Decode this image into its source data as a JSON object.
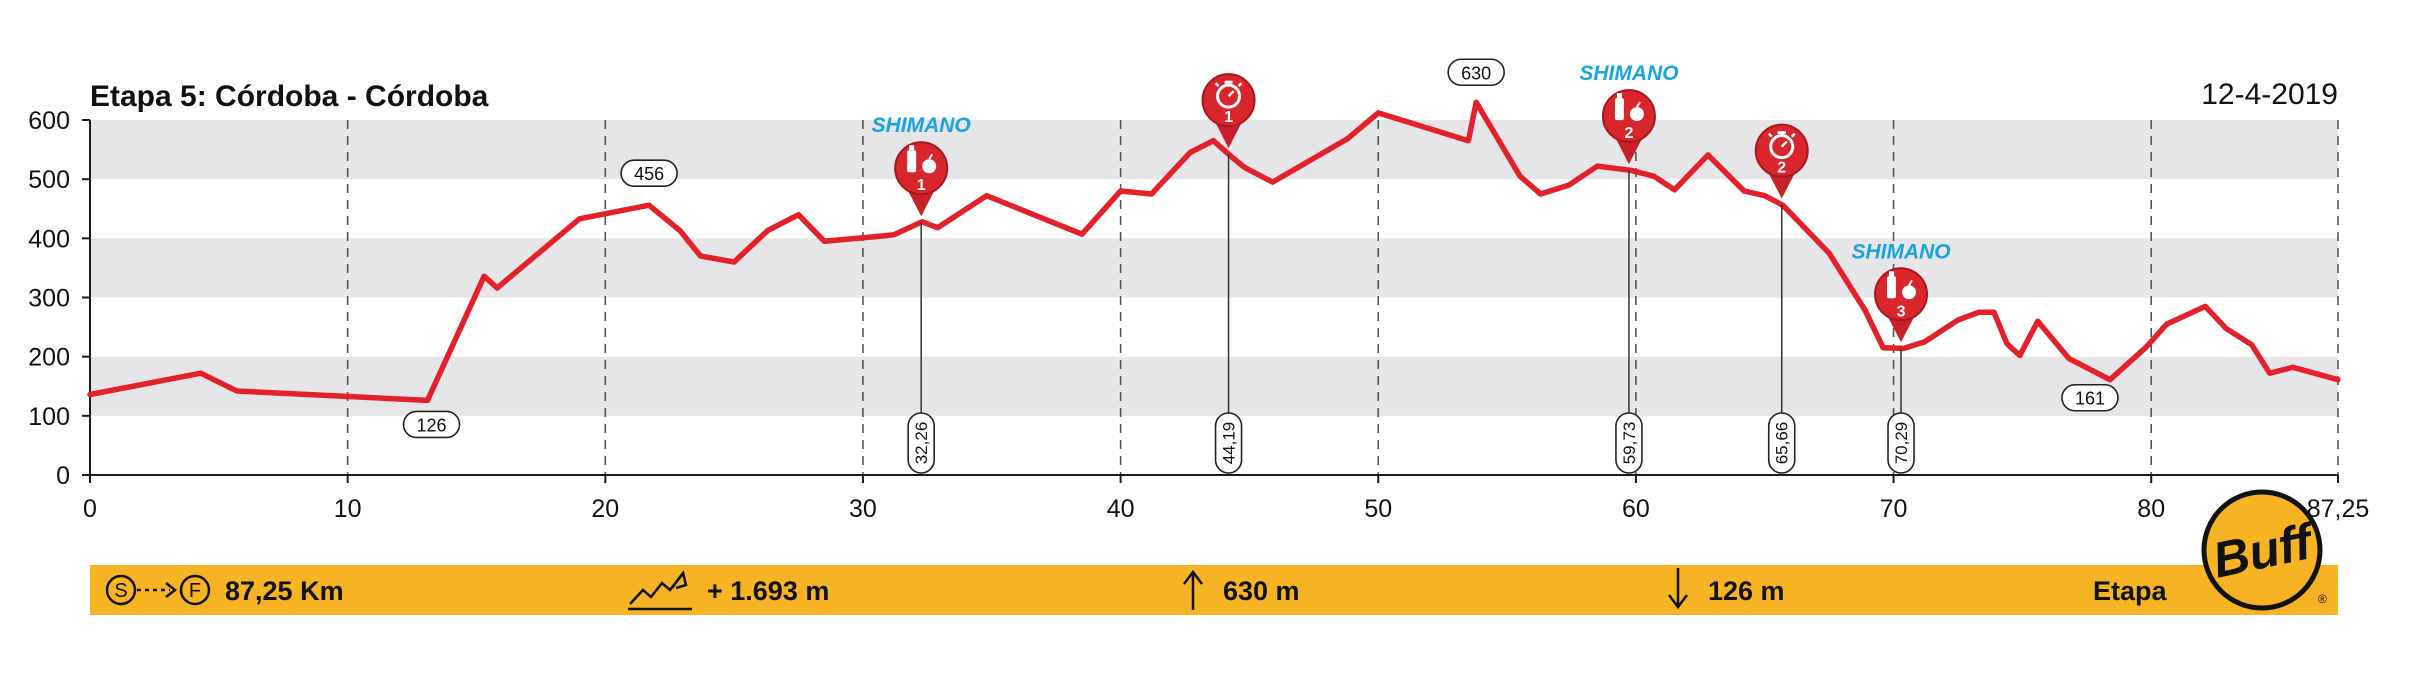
{
  "header": {
    "title": "Etapa 5: Córdoba - Córdoba",
    "date": "12-4-2019"
  },
  "chart_data": {
    "type": "area",
    "title": "Etapa 5: Córdoba - Córdoba",
    "xlabel": "",
    "ylabel": "",
    "xlim": [
      0,
      87.25
    ],
    "ylim": [
      0,
      600
    ],
    "x_ticks": [
      "0",
      "10",
      "20",
      "30",
      "40",
      "50",
      "60",
      "70",
      "80",
      "87,25"
    ],
    "x_tick_values": [
      0,
      10,
      20,
      30,
      40,
      50,
      60,
      70,
      80,
      87.25
    ],
    "y_ticks": [
      "0",
      "100",
      "200",
      "300",
      "400",
      "500",
      "600"
    ],
    "y_tick_values": [
      0,
      100,
      200,
      300,
      400,
      500,
      600
    ],
    "grid": "alternating horizontal bands, dashed vertical lines every 10 km",
    "line_color": "#e2212b",
    "series": [
      {
        "x": [
          0,
          4.3,
          5.7,
          13.1,
          15.3,
          15.8,
          19,
          21.7,
          22.9,
          23.7,
          25,
          26.3,
          27.5,
          28.5,
          30.5,
          31.2,
          32.3,
          32.9,
          34.8,
          38.5,
          40,
          41.2,
          42.7,
          43.6,
          44.3,
          44.8,
          45.9,
          48.8,
          50,
          53.5,
          53.8,
          55.5,
          56.3,
          57.4,
          58.5,
          59.8,
          60.7,
          61.5,
          62.8,
          64.2,
          65,
          65.7,
          67.5,
          68.9,
          69.6,
          70.4,
          71.2,
          72.5,
          73.3,
          73.9,
          74.4,
          74.9,
          75.6,
          76.8,
          78.4,
          79.8,
          80.6,
          82.1,
          82.9,
          83.9,
          84.6,
          85.5,
          87.25
        ],
        "y": [
          136,
          172,
          142,
          126,
          336,
          316,
          433,
          456,
          413,
          370,
          360,
          413,
          440,
          395,
          403,
          406,
          428,
          418,
          472,
          407,
          480,
          475,
          545,
          565,
          538,
          520,
          495,
          568,
          612,
          565,
          630,
          505,
          475,
          490,
          522,
          515,
          505,
          482,
          541,
          480,
          472,
          456,
          375,
          278,
          215,
          214,
          225,
          262,
          275,
          275,
          222,
          202,
          260,
          197,
          161,
          216,
          255,
          285,
          248,
          220,
          172,
          182,
          161
        ]
      }
    ],
    "elevation_labels": [
      {
        "x": 21.7,
        "y": 456,
        "label": "456"
      },
      {
        "x": 13.1,
        "y": 126,
        "label": "126"
      },
      {
        "x": 53.8,
        "y": 630,
        "label": "630"
      },
      {
        "x": 78.4,
        "y": 161,
        "label": "161"
      }
    ],
    "markers": [
      {
        "km": 32.26,
        "label": "32,26",
        "type": "feed",
        "number": "1",
        "sponsor": "SHIMANO"
      },
      {
        "km": 44.19,
        "label": "44,19",
        "type": "timer",
        "number": "1",
        "sponsor": ""
      },
      {
        "km": 59.73,
        "label": "59,73",
        "type": "feed",
        "number": "2",
        "sponsor": "SHIMANO"
      },
      {
        "km": 65.66,
        "label": "65,66",
        "type": "timer",
        "number": "2",
        "sponsor": ""
      },
      {
        "km": 70.29,
        "label": "70,29",
        "type": "feed",
        "number": "3",
        "sponsor": "SHIMANO"
      }
    ]
  },
  "footer": {
    "start_finish_s": "S",
    "start_finish_f": "F",
    "distance": "87,25 Km",
    "climb": "+ 1.693 m",
    "max_altitude": "630 m",
    "min_altitude": "126 m",
    "stage_type": "Etapa",
    "brand": "Buff",
    "bar_color": "#f6b323"
  }
}
